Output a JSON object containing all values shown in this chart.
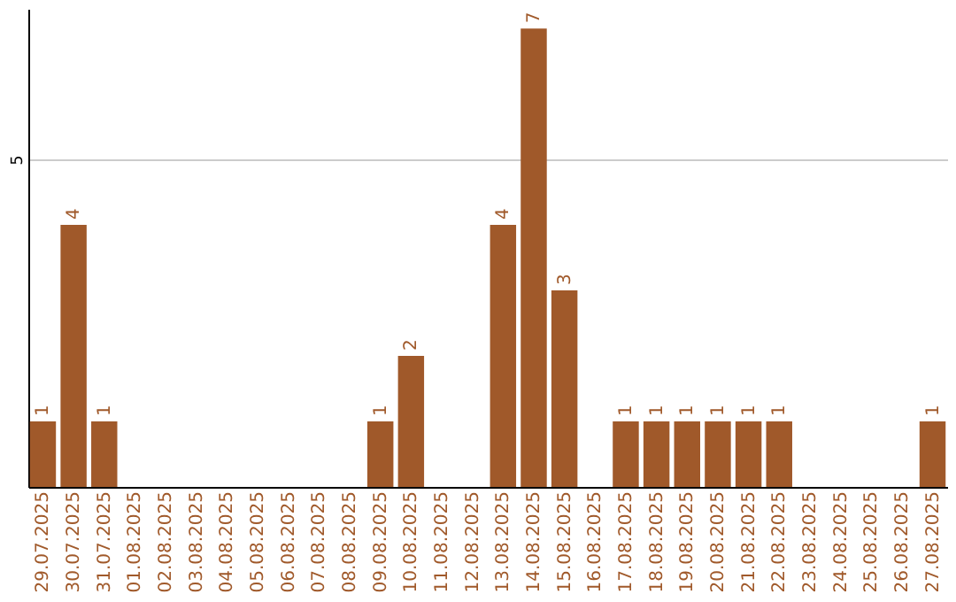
{
  "chart_data": {
    "type": "bar",
    "categories": [
      "29.07.2025",
      "30.07.2025",
      "31.07.2025",
      "01.08.2025",
      "02.08.2025",
      "03.08.2025",
      "04.08.2025",
      "05.08.2025",
      "06.08.2025",
      "07.08.2025",
      "08.08.2025",
      "09.08.2025",
      "10.08.2025",
      "11.08.2025",
      "12.08.2025",
      "13.08.2025",
      "14.08.2025",
      "15.08.2025",
      "16.08.2025",
      "17.08.2025",
      "18.08.2025",
      "19.08.2025",
      "20.08.2025",
      "21.08.2025",
      "22.08.2025",
      "23.08.2025",
      "24.08.2025",
      "25.08.2025",
      "26.08.2025",
      "27.08.2025"
    ],
    "values": [
      1,
      4,
      1,
      0,
      0,
      0,
      0,
      0,
      0,
      0,
      0,
      1,
      2,
      0,
      0,
      4,
      7,
      3,
      0,
      1,
      1,
      1,
      1,
      1,
      1,
      0,
      0,
      0,
      0,
      1
    ],
    "value_labels": [
      "1",
      "4",
      "1",
      null,
      null,
      null,
      null,
      null,
      null,
      null,
      null,
      "1",
      "2",
      null,
      null,
      "4",
      "7",
      "3",
      null,
      "1",
      "1",
      "1",
      "1",
      "1",
      "1",
      null,
      null,
      null,
      null,
      "1"
    ],
    "color": "#a0592a",
    "ylim": [
      0,
      7.3
    ],
    "yticks": [
      5
    ],
    "grid": "y"
  }
}
